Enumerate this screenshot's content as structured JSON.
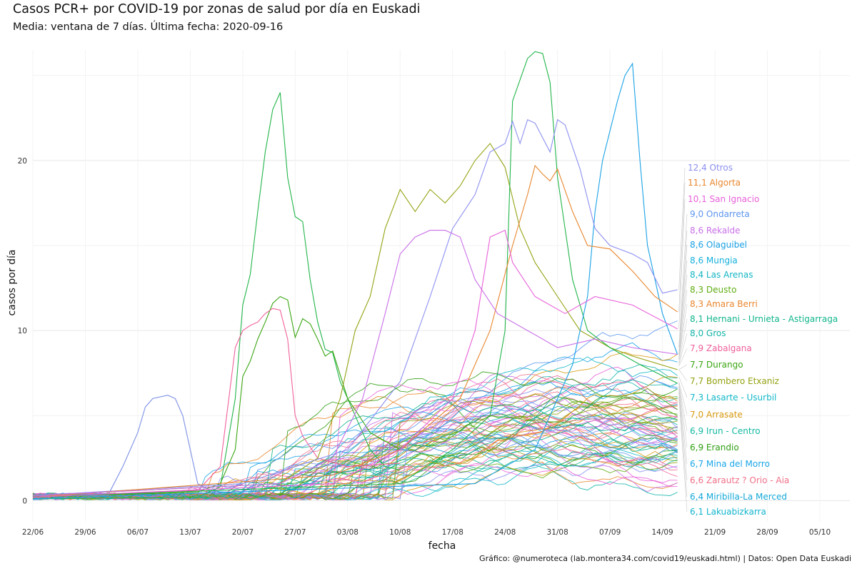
{
  "title": "Casos PCR+ por COVID-19 por zonas de salud por día en Euskadi",
  "subtitle": "Media: ventana de 7 días. Última fecha: 2020-09-16",
  "caption": "Gráfico: @numeroteca (lab.montera34.com/covid19/euskadi.html) | Datos: Open Data Euskadi",
  "chart_data": {
    "type": "line",
    "xlabel": "fecha",
    "ylabel": "casos por día",
    "x_range": [
      "2020-06-22",
      "2020-10-09"
    ],
    "ylim": [
      -1.2,
      26.5
    ],
    "x_ticks": [
      {
        "date": "2020-06-22",
        "label": "22/06"
      },
      {
        "date": "2020-06-29",
        "label": "29/06"
      },
      {
        "date": "2020-07-06",
        "label": "06/07"
      },
      {
        "date": "2020-07-13",
        "label": "13/07"
      },
      {
        "date": "2020-07-20",
        "label": "20/07"
      },
      {
        "date": "2020-07-27",
        "label": "27/07"
      },
      {
        "date": "2020-08-03",
        "label": "03/08"
      },
      {
        "date": "2020-08-10",
        "label": "10/08"
      },
      {
        "date": "2020-08-17",
        "label": "17/08"
      },
      {
        "date": "2020-08-24",
        "label": "24/08"
      },
      {
        "date": "2020-08-31",
        "label": "31/08"
      },
      {
        "date": "2020-09-07",
        "label": "07/09"
      },
      {
        "date": "2020-09-14",
        "label": "14/09"
      },
      {
        "date": "2020-09-21",
        "label": "21/09"
      },
      {
        "date": "2020-09-28",
        "label": "28/09"
      },
      {
        "date": "2020-10-05",
        "label": "05/10"
      }
    ],
    "y_ticks": [
      0,
      10,
      20
    ],
    "grid": true,
    "last_date": "2020-09-16",
    "labeled_series": [
      {
        "label": "12,4 Otros",
        "last": 12.4,
        "color": "#8c8ff0"
      },
      {
        "label": "11,1 Algorta",
        "last": 11.1,
        "color": "#e8862e"
      },
      {
        "label": "10,1 San Ignacio",
        "last": 10.1,
        "color": "#e860d8"
      },
      {
        "label": "9,0 Ondarreta",
        "last": 9.0,
        "color": "#5b95ee"
      },
      {
        "label": "8,6 Rekalde",
        "last": 8.6,
        "color": "#c970e8"
      },
      {
        "label": "8,6 Olaguibel",
        "last": 8.6,
        "color": "#1aa2e6"
      },
      {
        "label": "8,6 Mungia",
        "last": 8.6,
        "color": "#14b0dc"
      },
      {
        "label": "8,4 Las Arenas",
        "last": 8.4,
        "color": "#13b5c4"
      },
      {
        "label": "8,3 Deusto",
        "last": 8.3,
        "color": "#5fad12"
      },
      {
        "label": "8,3 Amara Berri",
        "last": 8.3,
        "color": "#e8862e"
      },
      {
        "label": "8,1 Hernani - Urnieta - Astigarraga",
        "last": 8.1,
        "color": "#11b58c"
      },
      {
        "label": "8,0 Gros",
        "last": 8.0,
        "color": "#13b5a8"
      },
      {
        "label": "7,9 Zabalgana",
        "last": 7.9,
        "color": "#f0609a"
      },
      {
        "label": "7,7 Durango",
        "last": 7.7,
        "color": "#3aa612"
      },
      {
        "label": "7,7 Bombero Etxaniz",
        "last": 7.7,
        "color": "#94a312"
      },
      {
        "label": "7,3 Lasarte - Usurbil",
        "last": 7.3,
        "color": "#12b8c8"
      },
      {
        "label": "7,0 Arrasate",
        "last": 7.0,
        "color": "#d89a10"
      },
      {
        "label": "6,9 Irun - Centro",
        "last": 6.9,
        "color": "#12b8a2"
      },
      {
        "label": "6,9 Erandio",
        "last": 6.9,
        "color": "#2e9e10"
      },
      {
        "label": "6,7 Mina del Morro",
        "last": 6.7,
        "color": "#1aa6e8"
      },
      {
        "label": "6,6 Zarautz ? Orio - Aia",
        "last": 6.6,
        "color": "#f07088"
      },
      {
        "label": "6,4 Miribilla-La Merced",
        "last": 6.4,
        "color": "#12a8d8"
      },
      {
        "label": "6,1 Lakuabizkarra",
        "last": 6.1,
        "color": "#12b4cc"
      }
    ],
    "highlight_series": [
      {
        "color": "#22b54a",
        "points": [
          [
            "2020-06-22",
            0.1
          ],
          [
            "2020-07-14",
            0.2
          ],
          [
            "2020-07-17",
            0.8
          ],
          [
            "2020-07-19",
            6
          ],
          [
            "2020-07-20",
            11.5
          ],
          [
            "2020-07-21",
            13.3
          ],
          [
            "2020-07-22",
            17
          ],
          [
            "2020-07-23",
            20.5
          ],
          [
            "2020-07-24",
            23
          ],
          [
            "2020-07-25",
            24
          ],
          [
            "2020-07-26",
            19
          ],
          [
            "2020-07-27",
            16.7
          ],
          [
            "2020-07-28",
            16.4
          ],
          [
            "2020-07-29",
            13
          ],
          [
            "2020-07-30",
            10.5
          ],
          [
            "2020-07-31",
            8.9
          ],
          [
            "2020-08-01",
            8.7
          ],
          [
            "2020-08-02",
            7
          ],
          [
            "2020-08-04",
            5
          ],
          [
            "2020-08-06",
            3
          ],
          [
            "2020-08-08",
            2
          ],
          [
            "2020-08-10",
            1.8
          ]
        ]
      },
      {
        "color": "#3aa612",
        "points": [
          [
            "2020-06-22",
            0.2
          ],
          [
            "2020-07-14",
            0.5
          ],
          [
            "2020-07-17",
            1
          ],
          [
            "2020-07-19",
            3
          ],
          [
            "2020-07-20",
            7.3
          ],
          [
            "2020-07-21",
            8.2
          ],
          [
            "2020-07-22",
            9.5
          ],
          [
            "2020-07-23",
            10.5
          ],
          [
            "2020-07-24",
            11.6
          ],
          [
            "2020-07-25",
            12
          ],
          [
            "2020-07-26",
            11.8
          ],
          [
            "2020-07-27",
            9.6
          ],
          [
            "2020-07-28",
            10.7
          ],
          [
            "2020-07-29",
            10.4
          ],
          [
            "2020-07-30",
            9.5
          ],
          [
            "2020-07-31",
            8.5
          ],
          [
            "2020-08-01",
            8.8
          ],
          [
            "2020-08-03",
            6
          ],
          [
            "2020-08-06",
            4
          ],
          [
            "2020-08-10",
            3
          ]
        ]
      },
      {
        "color": "#f0609a",
        "points": [
          [
            "2020-06-22",
            0.2
          ],
          [
            "2020-07-14",
            0.6
          ],
          [
            "2020-07-17",
            2
          ],
          [
            "2020-07-19",
            9
          ],
          [
            "2020-07-20",
            10
          ],
          [
            "2020-07-21",
            10.3
          ],
          [
            "2020-07-22",
            10.5
          ],
          [
            "2020-07-23",
            11
          ],
          [
            "2020-07-24",
            11.3
          ],
          [
            "2020-07-25",
            11.2
          ],
          [
            "2020-07-26",
            9.5
          ],
          [
            "2020-07-27",
            5
          ],
          [
            "2020-07-28",
            3.8
          ],
          [
            "2020-07-30",
            2.5
          ],
          [
            "2020-08-03",
            2
          ],
          [
            "2020-08-10",
            2.2
          ]
        ]
      },
      {
        "color": "#7b8fe6",
        "points": [
          [
            "2020-06-22",
            0.3
          ],
          [
            "2020-07-02",
            0.3
          ],
          [
            "2020-07-04",
            2
          ],
          [
            "2020-07-06",
            4
          ],
          [
            "2020-07-07",
            5.5
          ],
          [
            "2020-07-08",
            6
          ],
          [
            "2020-07-10",
            6.2
          ],
          [
            "2020-07-11",
            6
          ],
          [
            "2020-07-12",
            5
          ],
          [
            "2020-07-13",
            3
          ],
          [
            "2020-07-14",
            1
          ],
          [
            "2020-07-16",
            0.5
          ],
          [
            "2020-07-20",
            1
          ]
        ]
      },
      {
        "color": "#94a312",
        "points": [
          [
            "2020-06-22",
            0.3
          ],
          [
            "2020-07-25",
            1
          ],
          [
            "2020-07-30",
            2.5
          ],
          [
            "2020-08-02",
            6
          ],
          [
            "2020-08-04",
            10
          ],
          [
            "2020-08-06",
            12
          ],
          [
            "2020-08-08",
            16
          ],
          [
            "2020-08-10",
            18.3
          ],
          [
            "2020-08-12",
            17
          ],
          [
            "2020-08-14",
            18.3
          ],
          [
            "2020-08-16",
            17.5
          ],
          [
            "2020-08-18",
            18.5
          ],
          [
            "2020-08-20",
            20
          ],
          [
            "2020-08-22",
            21
          ],
          [
            "2020-08-24",
            19.6
          ],
          [
            "2020-08-26",
            16
          ],
          [
            "2020-08-28",
            14
          ],
          [
            "2020-08-31",
            12
          ],
          [
            "2020-09-03",
            10
          ],
          [
            "2020-09-07",
            9
          ],
          [
            "2020-09-10",
            8.5
          ],
          [
            "2020-09-16",
            7.7
          ]
        ]
      },
      {
        "color": "#22b54a",
        "points": [
          [
            "2020-06-22",
            0.2
          ],
          [
            "2020-08-10",
            1
          ],
          [
            "2020-08-17",
            3
          ],
          [
            "2020-08-22",
            5
          ],
          [
            "2020-08-24",
            10
          ],
          [
            "2020-08-25",
            23.5
          ],
          [
            "2020-08-27",
            26
          ],
          [
            "2020-08-28",
            26.4
          ],
          [
            "2020-08-29",
            26.3
          ],
          [
            "2020-08-30",
            24.6
          ],
          [
            "2020-08-31",
            19
          ],
          [
            "2020-09-02",
            13
          ],
          [
            "2020-09-04",
            10
          ],
          [
            "2020-09-07",
            9
          ],
          [
            "2020-09-11",
            8
          ],
          [
            "2020-09-16",
            6.9
          ]
        ]
      },
      {
        "color": "#1aa2e6",
        "points": [
          [
            "2020-06-22",
            0.1
          ],
          [
            "2020-08-20",
            1
          ],
          [
            "2020-08-28",
            3
          ],
          [
            "2020-09-02",
            8
          ],
          [
            "2020-09-04",
            12
          ],
          [
            "2020-09-05",
            17
          ],
          [
            "2020-09-06",
            20
          ],
          [
            "2020-09-08",
            23.5
          ],
          [
            "2020-09-09",
            25
          ],
          [
            "2020-09-10",
            25.7
          ],
          [
            "2020-09-11",
            20
          ],
          [
            "2020-09-12",
            15
          ],
          [
            "2020-09-14",
            11
          ],
          [
            "2020-09-16",
            8.6
          ]
        ]
      },
      {
        "color": "#8c8ff0",
        "points": [
          [
            "2020-06-22",
            0.3
          ],
          [
            "2020-07-20",
            1
          ],
          [
            "2020-08-03",
            3
          ],
          [
            "2020-08-10",
            7
          ],
          [
            "2020-08-14",
            12
          ],
          [
            "2020-08-17",
            16
          ],
          [
            "2020-08-20",
            18
          ],
          [
            "2020-08-22",
            20.5
          ],
          [
            "2020-08-24",
            21
          ],
          [
            "2020-08-25",
            22.3
          ],
          [
            "2020-08-26",
            21
          ],
          [
            "2020-08-27",
            22.4
          ],
          [
            "2020-08-28",
            22.2
          ],
          [
            "2020-08-30",
            20.5
          ],
          [
            "2020-08-31",
            22.4
          ],
          [
            "2020-09-01",
            22.1
          ],
          [
            "2020-09-03",
            19.5
          ],
          [
            "2020-09-05",
            16
          ],
          [
            "2020-09-07",
            15
          ],
          [
            "2020-09-10",
            14.5
          ],
          [
            "2020-09-12",
            14
          ],
          [
            "2020-09-14",
            12.2
          ],
          [
            "2020-09-16",
            12.4
          ]
        ]
      },
      {
        "color": "#e8862e",
        "points": [
          [
            "2020-06-22",
            0.2
          ],
          [
            "2020-08-01",
            1.5
          ],
          [
            "2020-08-10",
            3
          ],
          [
            "2020-08-18",
            6
          ],
          [
            "2020-08-22",
            10
          ],
          [
            "2020-08-25",
            15
          ],
          [
            "2020-08-27",
            18
          ],
          [
            "2020-08-28",
            19.7
          ],
          [
            "2020-08-29",
            19.2
          ],
          [
            "2020-08-30",
            18.8
          ],
          [
            "2020-08-31",
            19.5
          ],
          [
            "2020-09-02",
            17
          ],
          [
            "2020-09-04",
            15
          ],
          [
            "2020-09-07",
            14.8
          ],
          [
            "2020-09-10",
            13.5
          ],
          [
            "2020-09-13",
            12
          ],
          [
            "2020-09-16",
            11.1
          ]
        ]
      },
      {
        "color": "#c970e8",
        "points": [
          [
            "2020-06-22",
            0.3
          ],
          [
            "2020-07-25",
            1
          ],
          [
            "2020-08-01",
            2.5
          ],
          [
            "2020-08-05",
            6
          ],
          [
            "2020-08-08",
            11
          ],
          [
            "2020-08-10",
            14.5
          ],
          [
            "2020-08-12",
            15.5
          ],
          [
            "2020-08-14",
            15.9
          ],
          [
            "2020-08-16",
            15.9
          ],
          [
            "2020-08-18",
            15.5
          ],
          [
            "2020-08-20",
            13
          ],
          [
            "2020-08-23",
            11
          ],
          [
            "2020-08-27",
            10
          ],
          [
            "2020-08-31",
            9
          ],
          [
            "2020-09-05",
            9.5
          ],
          [
            "2020-09-10",
            9
          ],
          [
            "2020-09-16",
            8.6
          ]
        ]
      },
      {
        "color": "#e860d8",
        "points": [
          [
            "2020-06-22",
            0.2
          ],
          [
            "2020-08-01",
            1
          ],
          [
            "2020-08-10",
            3
          ],
          [
            "2020-08-17",
            6
          ],
          [
            "2020-08-20",
            10
          ],
          [
            "2020-08-22",
            15.5
          ],
          [
            "2020-08-24",
            15.9
          ],
          [
            "2020-08-25",
            14
          ],
          [
            "2020-08-28",
            12
          ],
          [
            "2020-09-01",
            11
          ],
          [
            "2020-09-05",
            12
          ],
          [
            "2020-09-10",
            11.5
          ],
          [
            "2020-09-16",
            10.1
          ]
        ]
      }
    ]
  }
}
